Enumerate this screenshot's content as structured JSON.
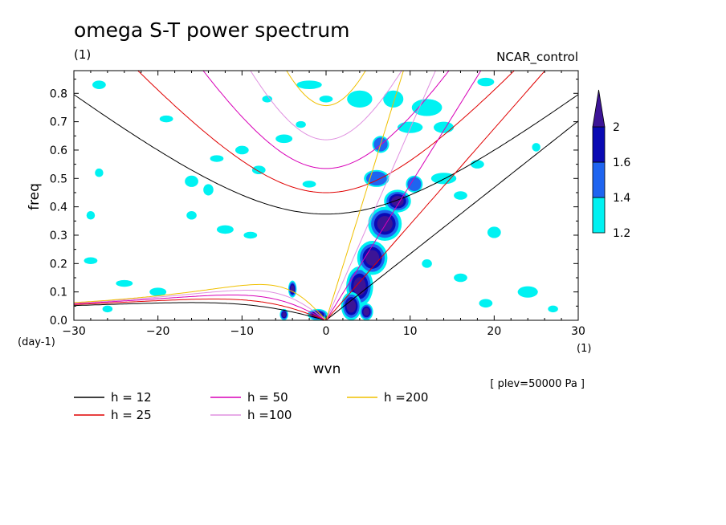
{
  "title": "omega S-T power spectrum",
  "units_label": "(1)",
  "model_label": "NCAR_control",
  "level_label": "[ plev=50000 Pa ]",
  "chart_data": {
    "type": "heatmap",
    "title": "omega S-T power spectrum",
    "xlabel": "wvn",
    "ylabel": "freq",
    "x_unit_label": "(1)",
    "y_unit_label": "(day-1)",
    "xlim": [
      -30,
      30
    ],
    "ylim": [
      0,
      0.88
    ],
    "xticks": [
      -30,
      -20,
      -10,
      0,
      10,
      20,
      30
    ],
    "xtick_labels": [
      "-30",
      "-20",
      "-10",
      "0",
      "10",
      "20",
      "30"
    ],
    "yticks": [
      0,
      0.1,
      0.2,
      0.3,
      0.4,
      0.5,
      0.6,
      0.7,
      0.8
    ],
    "ytick_labels": [
      "0.0",
      "0.1",
      "0.2",
      "0.3",
      "0.4",
      "0.5",
      "0.6",
      "0.7",
      "0.8"
    ],
    "grid": false,
    "colorbar": {
      "levels": [
        1.2,
        1.4,
        1.6,
        2
      ],
      "labels": [
        "1.2",
        "1.4",
        "1.6",
        "2"
      ],
      "colors": [
        "#00f2f2",
        "#1e64f0",
        "#0a0ab4",
        "#3c1496"
      ]
    },
    "contour_blobs": [
      {
        "level": 2,
        "x": 4.0,
        "y": 0.12,
        "rx": 1.6,
        "ry": 0.07
      },
      {
        "level": 2,
        "x": 5.5,
        "y": 0.22,
        "rx": 1.8,
        "ry": 0.06
      },
      {
        "level": 2,
        "x": 7.0,
        "y": 0.34,
        "rx": 2.0,
        "ry": 0.06
      },
      {
        "level": 2,
        "x": 8.5,
        "y": 0.42,
        "rx": 1.6,
        "ry": 0.04
      },
      {
        "level": 2,
        "x": 3.0,
        "y": 0.05,
        "rx": 1.2,
        "ry": 0.05
      },
      {
        "level": 2,
        "x": 4.8,
        "y": 0.03,
        "rx": 0.8,
        "ry": 0.03
      },
      {
        "level": 2,
        "x": -1.0,
        "y": 0.02,
        "rx": 1.2,
        "ry": 0.02
      },
      {
        "level": 2,
        "x": -5.0,
        "y": 0.02,
        "rx": 0.5,
        "ry": 0.02
      },
      {
        "level": 2,
        "x": -4.0,
        "y": 0.11,
        "rx": 0.5,
        "ry": 0.03
      },
      {
        "level": 1.4,
        "x": 6.0,
        "y": 0.5,
        "rx": 1.5,
        "ry": 0.03
      },
      {
        "level": 1.4,
        "x": 6.5,
        "y": 0.62,
        "rx": 1.0,
        "ry": 0.03
      },
      {
        "level": 1.4,
        "x": 10.5,
        "y": 0.48,
        "rx": 1.0,
        "ry": 0.03
      },
      {
        "level": 1.2,
        "x": -27,
        "y": 0.83,
        "rx": 0.8,
        "ry": 0.015
      },
      {
        "level": 1.2,
        "x": -19,
        "y": 0.71,
        "rx": 0.8,
        "ry": 0.012
      },
      {
        "level": 1.2,
        "x": -27,
        "y": 0.52,
        "rx": 0.5,
        "ry": 0.015
      },
      {
        "level": 1.2,
        "x": -13,
        "y": 0.57,
        "rx": 0.8,
        "ry": 0.012
      },
      {
        "level": 1.2,
        "x": -10,
        "y": 0.6,
        "rx": 0.8,
        "ry": 0.015
      },
      {
        "level": 1.2,
        "x": -8,
        "y": 0.53,
        "rx": 0.8,
        "ry": 0.015
      },
      {
        "level": 1.2,
        "x": -16,
        "y": 0.49,
        "rx": 0.8,
        "ry": 0.02
      },
      {
        "level": 1.2,
        "x": -14,
        "y": 0.46,
        "rx": 0.6,
        "ry": 0.02
      },
      {
        "level": 1.2,
        "x": -12,
        "y": 0.32,
        "rx": 1.0,
        "ry": 0.015
      },
      {
        "level": 1.2,
        "x": -16,
        "y": 0.37,
        "rx": 0.6,
        "ry": 0.015
      },
      {
        "level": 1.2,
        "x": -28,
        "y": 0.37,
        "rx": 0.5,
        "ry": 0.015
      },
      {
        "level": 1.2,
        "x": -9,
        "y": 0.3,
        "rx": 0.8,
        "ry": 0.012
      },
      {
        "level": 1.2,
        "x": -28,
        "y": 0.21,
        "rx": 0.8,
        "ry": 0.012
      },
      {
        "level": 1.2,
        "x": -24,
        "y": 0.13,
        "rx": 1.0,
        "ry": 0.012
      },
      {
        "level": 1.2,
        "x": -20,
        "y": 0.1,
        "rx": 1.0,
        "ry": 0.015
      },
      {
        "level": 1.2,
        "x": -26,
        "y": 0.04,
        "rx": 0.6,
        "ry": 0.012
      },
      {
        "level": 1.2,
        "x": -5,
        "y": 0.64,
        "rx": 1.0,
        "ry": 0.015
      },
      {
        "level": 1.2,
        "x": -2,
        "y": 0.83,
        "rx": 1.5,
        "ry": 0.015
      },
      {
        "level": 1.2,
        "x": 0,
        "y": 0.78,
        "rx": 0.8,
        "ry": 0.012
      },
      {
        "level": 1.2,
        "x": -7,
        "y": 0.78,
        "rx": 0.6,
        "ry": 0.012
      },
      {
        "level": 1.2,
        "x": -3,
        "y": 0.69,
        "rx": 0.6,
        "ry": 0.012
      },
      {
        "level": 1.2,
        "x": -2,
        "y": 0.48,
        "rx": 0.8,
        "ry": 0.012
      },
      {
        "level": 1.2,
        "x": 4,
        "y": 0.78,
        "rx": 1.5,
        "ry": 0.03
      },
      {
        "level": 1.2,
        "x": 8,
        "y": 0.78,
        "rx": 1.2,
        "ry": 0.03
      },
      {
        "level": 1.2,
        "x": 12,
        "y": 0.75,
        "rx": 1.8,
        "ry": 0.03
      },
      {
        "level": 1.2,
        "x": 14,
        "y": 0.68,
        "rx": 1.2,
        "ry": 0.02
      },
      {
        "level": 1.2,
        "x": 10,
        "y": 0.68,
        "rx": 1.5,
        "ry": 0.02
      },
      {
        "level": 1.2,
        "x": 14,
        "y": 0.5,
        "rx": 1.5,
        "ry": 0.02
      },
      {
        "level": 1.2,
        "x": 18,
        "y": 0.55,
        "rx": 0.8,
        "ry": 0.015
      },
      {
        "level": 1.2,
        "x": 16,
        "y": 0.44,
        "rx": 0.8,
        "ry": 0.015
      },
      {
        "level": 1.2,
        "x": 19,
        "y": 0.84,
        "rx": 1.0,
        "ry": 0.015
      },
      {
        "level": 1.2,
        "x": 25,
        "y": 0.61,
        "rx": 0.5,
        "ry": 0.015
      },
      {
        "level": 1.2,
        "x": 20,
        "y": 0.31,
        "rx": 0.8,
        "ry": 0.02
      },
      {
        "level": 1.2,
        "x": 24,
        "y": 0.1,
        "rx": 1.2,
        "ry": 0.02
      },
      {
        "level": 1.2,
        "x": 19,
        "y": 0.06,
        "rx": 0.8,
        "ry": 0.015
      },
      {
        "level": 1.2,
        "x": 27,
        "y": 0.04,
        "rx": 0.6,
        "ry": 0.012
      },
      {
        "level": 1.2,
        "x": 16,
        "y": 0.15,
        "rx": 0.8,
        "ry": 0.015
      },
      {
        "level": 1.2,
        "x": 12,
        "y": 0.2,
        "rx": 0.6,
        "ry": 0.015
      }
    ],
    "dispersion_curves": [
      {
        "name": "h = 12",
        "h": 12,
        "color": "#000000"
      },
      {
        "name": "h = 25",
        "h": 25,
        "color": "#e00000"
      },
      {
        "name": "h = 50",
        "h": 50,
        "color": "#d800b8"
      },
      {
        "name": "h =100",
        "h": 100,
        "color": "#e090e0"
      },
      {
        "name": "h =200",
        "h": 200,
        "color": "#f0c000"
      }
    ]
  },
  "legend": [
    {
      "label": "h = 12",
      "color": "#000000"
    },
    {
      "label": "h = 50",
      "color": "#d800b8"
    },
    {
      "label": "h =200",
      "color": "#f0c000"
    },
    {
      "label": "h = 25",
      "color": "#e00000"
    },
    {
      "label": "h =100",
      "color": "#e090e0"
    }
  ]
}
